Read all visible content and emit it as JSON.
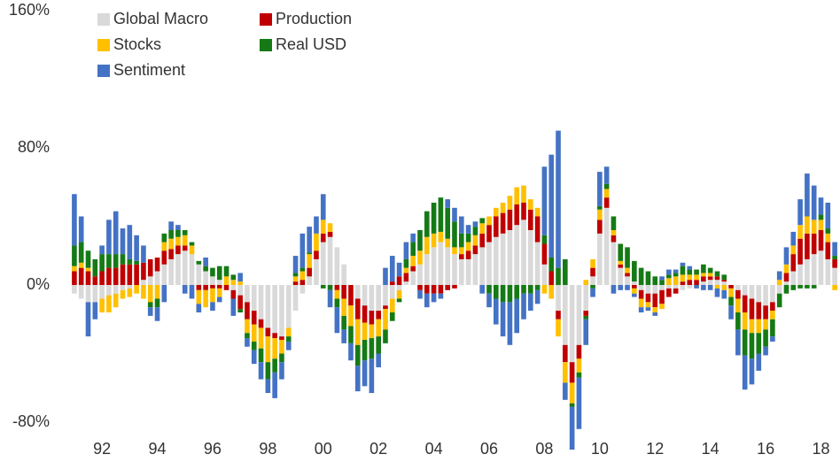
{
  "chart_data": {
    "type": "stacked_bar",
    "categories": [
      null,
      null,
      null,
      null,
      "92",
      null,
      null,
      null,
      null,
      null,
      null,
      null,
      "94",
      null,
      null,
      null,
      null,
      null,
      null,
      null,
      "96",
      null,
      null,
      null,
      null,
      null,
      null,
      null,
      "98",
      null,
      null,
      null,
      null,
      null,
      null,
      null,
      "00",
      null,
      null,
      null,
      null,
      null,
      null,
      null,
      "02",
      null,
      null,
      null,
      null,
      null,
      null,
      null,
      "04",
      null,
      null,
      null,
      null,
      null,
      null,
      null,
      "06",
      null,
      null,
      null,
      null,
      null,
      null,
      null,
      "08",
      null,
      null,
      null,
      null,
      null,
      null,
      null,
      "10",
      null,
      null,
      null,
      null,
      null,
      null,
      null,
      "12",
      null,
      null,
      null,
      null,
      null,
      null,
      null,
      "14",
      null,
      null,
      null,
      null,
      null,
      null,
      null,
      "16",
      null,
      null,
      null,
      null,
      null,
      null,
      null,
      "18",
      null,
      null
    ],
    "series": [
      {
        "name": "Global Macro",
        "color": "#d9d9d9",
        "values": [
          -5,
          -8,
          -10,
          -10,
          -8,
          -6,
          -5,
          -3,
          -2,
          0,
          3,
          5,
          8,
          12,
          15,
          18,
          20,
          18,
          12,
          8,
          5,
          3,
          0,
          -3,
          -6,
          -10,
          -15,
          -20,
          -25,
          -28,
          -30,
          -25,
          -15,
          -5,
          5,
          15,
          25,
          28,
          22,
          12,
          0,
          -8,
          -12,
          -15,
          -15,
          -12,
          -8,
          -3,
          2,
          8,
          12,
          18,
          22,
          25,
          22,
          18,
          15,
          15,
          18,
          22,
          25,
          28,
          30,
          32,
          35,
          38,
          32,
          25,
          12,
          0,
          -15,
          -35,
          -45,
          -35,
          -15,
          5,
          30,
          45,
          25,
          10,
          5,
          2,
          -3,
          -5,
          -5,
          -3,
          -2,
          -2,
          -3,
          -2,
          0,
          2,
          3,
          3,
          2,
          0,
          -3,
          -6,
          -8,
          -10,
          -12,
          -10,
          -5,
          2,
          8,
          12,
          15,
          18,
          20,
          15,
          10
        ]
      },
      {
        "name": "Production",
        "color": "#c00000",
        "values": [
          8,
          10,
          8,
          5,
          8,
          10,
          10,
          12,
          12,
          12,
          10,
          10,
          8,
          8,
          6,
          5,
          3,
          0,
          -3,
          -3,
          -2,
          -2,
          -3,
          -5,
          -8,
          -10,
          -8,
          -5,
          -5,
          -3,
          -2,
          0,
          2,
          3,
          5,
          5,
          5,
          3,
          -3,
          -8,
          -12,
          -12,
          -10,
          -8,
          -5,
          -2,
          2,
          5,
          5,
          3,
          -3,
          -5,
          -5,
          -5,
          -3,
          -2,
          3,
          5,
          5,
          8,
          10,
          12,
          12,
          12,
          12,
          10,
          12,
          15,
          12,
          8,
          -5,
          -10,
          -12,
          -8,
          -3,
          5,
          8,
          6,
          4,
          2,
          2,
          -2,
          -5,
          -5,
          -8,
          -8,
          -5,
          -3,
          2,
          3,
          3,
          3,
          2,
          2,
          1,
          -2,
          -5,
          -10,
          -12,
          -10,
          -8,
          -5,
          0,
          5,
          10,
          15,
          15,
          12,
          12,
          10,
          5
        ]
      },
      {
        "name": "Stocks",
        "color": "#ffc000",
        "values": [
          3,
          3,
          2,
          0,
          -8,
          -10,
          -8,
          -5,
          -5,
          -5,
          -8,
          -10,
          -8,
          5,
          6,
          5,
          6,
          5,
          -8,
          -10,
          -8,
          -5,
          5,
          3,
          2,
          -8,
          -10,
          -12,
          -15,
          -12,
          -8,
          -5,
          3,
          5,
          8,
          10,
          8,
          5,
          -5,
          -10,
          -12,
          -15,
          -10,
          -8,
          -10,
          -12,
          -8,
          -5,
          3,
          6,
          8,
          10,
          8,
          6,
          5,
          4,
          4,
          5,
          6,
          6,
          5,
          5,
          6,
          8,
          10,
          10,
          6,
          5,
          -5,
          -8,
          -10,
          -12,
          -12,
          -8,
          3,
          5,
          6,
          5,
          3,
          2,
          3,
          -3,
          -5,
          -3,
          -3,
          -3,
          4,
          5,
          4,
          3,
          3,
          2,
          2,
          -2,
          -3,
          -5,
          -8,
          -10,
          -8,
          -8,
          -6,
          -5,
          3,
          5,
          5,
          8,
          10,
          8,
          6,
          5,
          -3
        ]
      },
      {
        "name": "Real USD",
        "color": "#157a15",
        "values": [
          12,
          12,
          10,
          10,
          10,
          8,
          8,
          6,
          3,
          2,
          0,
          -3,
          -5,
          5,
          5,
          4,
          3,
          2,
          2,
          3,
          5,
          8,
          6,
          3,
          -2,
          -3,
          -5,
          -8,
          -10,
          -8,
          -5,
          -3,
          2,
          2,
          1,
          0,
          -2,
          -3,
          -5,
          -8,
          -10,
          -12,
          -12,
          -12,
          -10,
          -8,
          -5,
          -2,
          5,
          8,
          12,
          15,
          18,
          20,
          18,
          15,
          8,
          5,
          5,
          3,
          -5,
          -8,
          -10,
          -10,
          -8,
          -5,
          -5,
          -3,
          5,
          8,
          10,
          15,
          -2,
          -3,
          -2,
          -2,
          2,
          3,
          8,
          10,
          12,
          12,
          10,
          8,
          5,
          3,
          2,
          2,
          5,
          3,
          3,
          5,
          3,
          3,
          3,
          -5,
          -10,
          -15,
          -15,
          -12,
          -10,
          -10,
          -8,
          -5,
          -3,
          -2,
          -2,
          -2,
          3,
          3,
          2
        ]
      },
      {
        "name": "Sentiment",
        "color": "#4472c4",
        "values": [
          30,
          15,
          -20,
          -10,
          5,
          20,
          25,
          15,
          20,
          15,
          10,
          -5,
          -8,
          -10,
          5,
          3,
          -5,
          -8,
          -5,
          5,
          -5,
          -3,
          0,
          -10,
          5,
          -5,
          -8,
          -10,
          -8,
          -15,
          -10,
          -5,
          10,
          20,
          15,
          10,
          15,
          -10,
          -15,
          -8,
          -10,
          -15,
          -15,
          -20,
          -8,
          10,
          15,
          8,
          10,
          5,
          -5,
          -8,
          -5,
          -3,
          5,
          8,
          10,
          5,
          3,
          -5,
          -8,
          -15,
          -20,
          -25,
          -20,
          -15,
          -10,
          -8,
          40,
          60,
          80,
          -10,
          -25,
          -30,
          -15,
          -5,
          20,
          10,
          -5,
          -3,
          -3,
          -2,
          -3,
          -2,
          -2,
          2,
          3,
          2,
          2,
          2,
          -2,
          -3,
          -3,
          -5,
          -5,
          -8,
          -15,
          -20,
          -15,
          -10,
          -5,
          -3,
          5,
          10,
          8,
          15,
          25,
          20,
          10,
          15,
          8
        ]
      }
    ],
    "ylim": [
      -80,
      160
    ],
    "yticks": [
      {
        "value": -80,
        "label": "-80%"
      },
      {
        "value": 0,
        "label": "0%"
      },
      {
        "value": 80,
        "label": "80%"
      },
      {
        "value": 160,
        "label": "160%"
      }
    ],
    "grid": false
  }
}
